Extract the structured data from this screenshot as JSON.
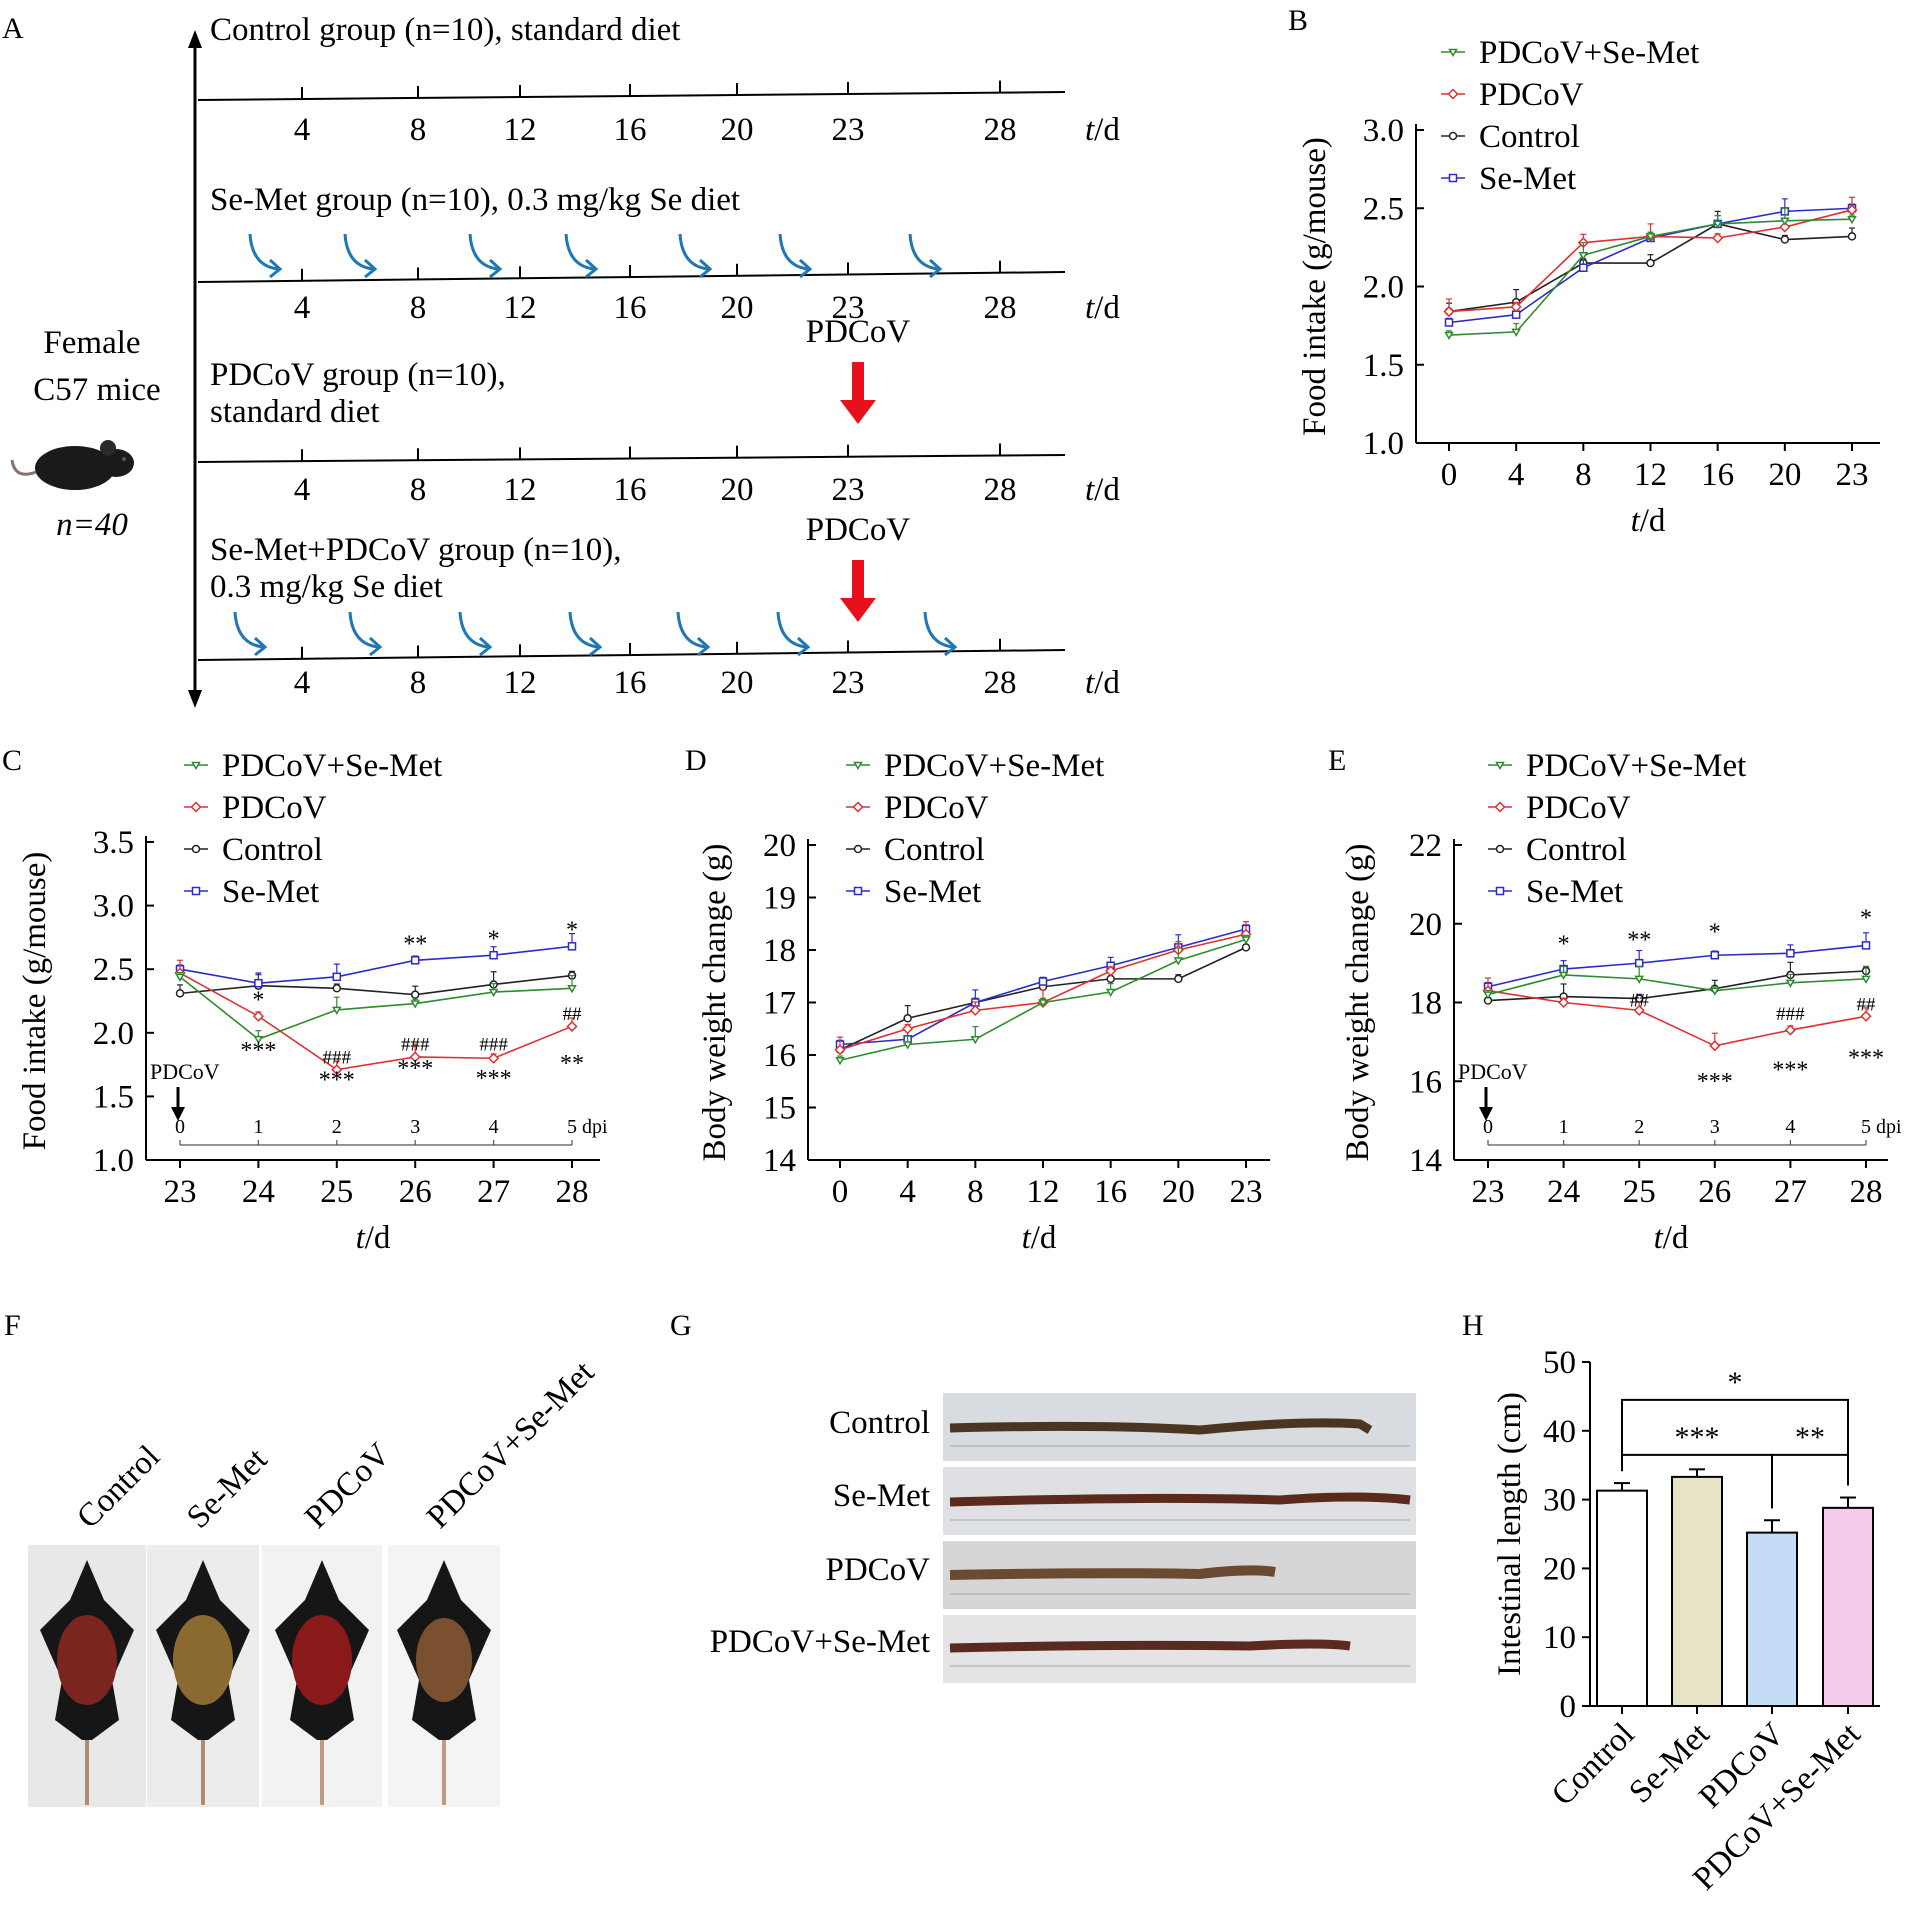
{
  "panel_labels": {
    "a": "A",
    "b": "B",
    "c": "C",
    "d": "D",
    "e": "E",
    "f": "F",
    "g": "G",
    "h": "H"
  },
  "timeline": {
    "unit": "t/d",
    "ticks": [
      "4",
      "8",
      "12",
      "16",
      "20",
      "23",
      "28"
    ],
    "mouse": {
      "line1": "Female",
      "line2": "C57 mice",
      "n": "n=40"
    },
    "virus_label": "PDCoV",
    "groups": [
      {
        "line1": "Control group (n=10), standard diet",
        "line2": ""
      },
      {
        "line1": "Se-Met group (n=10), 0.3 mg/kg Se diet",
        "line2": ""
      },
      {
        "line1": "PDCoV group (n=10),",
        "line2": "standard diet"
      },
      {
        "line1": "Se-Met+PDCoV group (n=10),",
        "line2": "0.3 mg/kg Se diet"
      }
    ]
  },
  "legend_entries": [
    "PDCoV+Se-Met",
    "PDCoV",
    "Control",
    "Se-Met"
  ],
  "colors": {
    "PDCoV+Se-Met": "#2e8b2e",
    "PDCoV": "#e03030",
    "Control": "#222222",
    "Se-Met": "#2b2bcc",
    "arrow_red": "#e8101a",
    "arrow_blue": "#1f77b4"
  },
  "annotations": {
    "pdcov": "PDCoV",
    "dpi": "dpi",
    "dpi_ticks": [
      "0",
      "1",
      "2",
      "3",
      "4",
      "5"
    ]
  },
  "chart_data": [
    {
      "panel": "B",
      "type": "line",
      "xlabel": "t/d",
      "ylabel": "Food intake (g/mouse)",
      "x": [
        "0",
        "4",
        "8",
        "12",
        "16",
        "20",
        "23"
      ],
      "ylim": [
        1.0,
        3.0
      ],
      "yticks": [
        "1.0",
        "1.5",
        "2.0",
        "2.5",
        "3.0"
      ],
      "series": [
        {
          "name": "PDCoV+Se-Met",
          "values": [
            1.69,
            1.71,
            2.2,
            2.32,
            2.4,
            2.42,
            2.43
          ]
        },
        {
          "name": "PDCoV",
          "values": [
            1.84,
            1.87,
            2.28,
            2.32,
            2.31,
            2.38,
            2.49
          ]
        },
        {
          "name": "Control",
          "values": [
            1.84,
            1.9,
            2.15,
            2.15,
            2.4,
            2.3,
            2.32
          ]
        },
        {
          "name": "Se-Met",
          "values": [
            1.77,
            1.82,
            2.12,
            2.31,
            2.4,
            2.48,
            2.5
          ]
        }
      ]
    },
    {
      "panel": "C",
      "type": "line",
      "xlabel": "t/d",
      "ylabel": "Food intake (g/mouse)",
      "x": [
        "23",
        "24",
        "25",
        "26",
        "27",
        "28"
      ],
      "ylim": [
        1.0,
        3.5
      ],
      "yticks": [
        "1.0",
        "1.5",
        "2.0",
        "2.5",
        "3.0",
        "3.5"
      ],
      "series": [
        {
          "name": "PDCoV+Se-Met",
          "values": [
            2.44,
            1.95,
            2.18,
            2.23,
            2.32,
            2.35
          ]
        },
        {
          "name": "PDCoV",
          "values": [
            2.47,
            2.13,
            1.71,
            1.81,
            1.8,
            2.05
          ]
        },
        {
          "name": "Control",
          "values": [
            2.31,
            2.37,
            2.35,
            2.3,
            2.38,
            2.45
          ]
        },
        {
          "name": "Se-Met",
          "values": [
            2.5,
            2.39,
            2.44,
            2.57,
            2.61,
            2.68
          ]
        }
      ],
      "sig_above": [
        {
          "x": "24",
          "text": "*",
          "y": 2.2
        },
        {
          "x": "26",
          "text": "**",
          "y": 2.64
        },
        {
          "x": "27",
          "text": "*",
          "y": 2.68
        },
        {
          "x": "28",
          "text": "*",
          "y": 2.75
        },
        {
          "x": "25",
          "text": "###",
          "y": 1.76
        },
        {
          "x": "26",
          "text": "###",
          "y": 1.86
        },
        {
          "x": "27",
          "text": "###",
          "y": 1.86
        },
        {
          "x": "28",
          "text": "##",
          "y": 2.1
        }
      ],
      "sig_below": [
        {
          "x": "24",
          "text": "***",
          "y": 1.8
        },
        {
          "x": "25",
          "text": "***",
          "y": 1.57
        },
        {
          "x": "26",
          "text": "***",
          "y": 1.66
        },
        {
          "x": "27",
          "text": "***",
          "y": 1.58
        },
        {
          "x": "28",
          "text": "**",
          "y": 1.7
        }
      ]
    },
    {
      "panel": "D",
      "type": "line",
      "xlabel": "t/d",
      "ylabel": "Body weight change (g)",
      "x": [
        "0",
        "4",
        "8",
        "12",
        "16",
        "20",
        "23"
      ],
      "ylim": [
        14,
        20
      ],
      "yticks": [
        "14",
        "15",
        "16",
        "17",
        "18",
        "19",
        "20"
      ],
      "series": [
        {
          "name": "PDCoV+Se-Met",
          "values": [
            15.9,
            16.2,
            16.3,
            17.0,
            17.2,
            17.8,
            18.2
          ]
        },
        {
          "name": "PDCoV",
          "values": [
            16.1,
            16.5,
            16.85,
            17.0,
            17.6,
            18.0,
            18.3
          ]
        },
        {
          "name": "Control",
          "values": [
            16.1,
            16.7,
            17.0,
            17.3,
            17.45,
            17.45,
            18.05
          ]
        },
        {
          "name": "Se-Met",
          "values": [
            16.2,
            16.3,
            17.0,
            17.4,
            17.7,
            18.05,
            18.4
          ]
        }
      ]
    },
    {
      "panel": "E",
      "type": "line",
      "xlabel": "t/d",
      "ylabel": "Body weight change (g)",
      "x": [
        "23",
        "24",
        "25",
        "26",
        "27",
        "28"
      ],
      "ylim": [
        14,
        22
      ],
      "yticks": [
        "14",
        "16",
        "18",
        "20",
        "22"
      ],
      "series": [
        {
          "name": "PDCoV+Se-Met",
          "values": [
            18.2,
            18.7,
            18.6,
            18.3,
            18.5,
            18.6
          ]
        },
        {
          "name": "PDCoV",
          "values": [
            18.3,
            18.0,
            17.8,
            16.9,
            17.3,
            17.65
          ]
        },
        {
          "name": "Control",
          "values": [
            18.05,
            18.15,
            18.1,
            18.35,
            18.7,
            18.8
          ]
        },
        {
          "name": "Se-Met",
          "values": [
            18.4,
            18.85,
            19.0,
            19.2,
            19.25,
            19.45
          ]
        }
      ],
      "sig_above": [
        {
          "x": "24",
          "text": "*",
          "y": 19.3
        },
        {
          "x": "25",
          "text": "**",
          "y": 19.4
        },
        {
          "x": "26",
          "text": "*",
          "y": 19.6
        },
        {
          "x": "28",
          "text": "*",
          "y": 19.95
        },
        {
          "x": "25",
          "text": "##",
          "y": 17.9
        },
        {
          "x": "27",
          "text": "###",
          "y": 17.55
        },
        {
          "x": "28",
          "text": "##",
          "y": 17.8
        }
      ],
      "sig_below": [
        {
          "x": "26",
          "text": "***",
          "y": 15.8
        },
        {
          "x": "27",
          "text": "***",
          "y": 16.1
        },
        {
          "x": "28",
          "text": "***",
          "y": 16.4
        }
      ]
    },
    {
      "panel": "H",
      "type": "bar",
      "ylabel": "Intestinal length (cm)",
      "categories": [
        "Control",
        "Se-Met",
        "PDCoV",
        "PDCoV+Se-Met"
      ],
      "values": [
        31.3,
        33.3,
        25.2,
        28.8
      ],
      "errors": [
        1.1,
        1.1,
        1.8,
        1.5
      ],
      "colors": [
        "#ffffff",
        "#e8e2c6",
        "#c4dcf5",
        "#f6cbec"
      ],
      "ylim": [
        0,
        50
      ],
      "yticks": [
        "0",
        "10",
        "20",
        "30",
        "40",
        "50"
      ],
      "comparisons": [
        {
          "from": 0,
          "to": 3,
          "text": "*",
          "level": 44.5
        },
        {
          "from": 0,
          "to": 2,
          "text": "***",
          "level": 36.5
        },
        {
          "from": 2,
          "to": 3,
          "text": "**",
          "level": 36.5
        }
      ]
    }
  ],
  "photos_f": {
    "labels": [
      "Control",
      "Se-Met",
      "PDCoV",
      "PDCoV+Se-Met"
    ]
  },
  "photos_g": {
    "labels": [
      "Control",
      "Se-Met",
      "PDCoV",
      "PDCoV+Se-Met"
    ]
  }
}
